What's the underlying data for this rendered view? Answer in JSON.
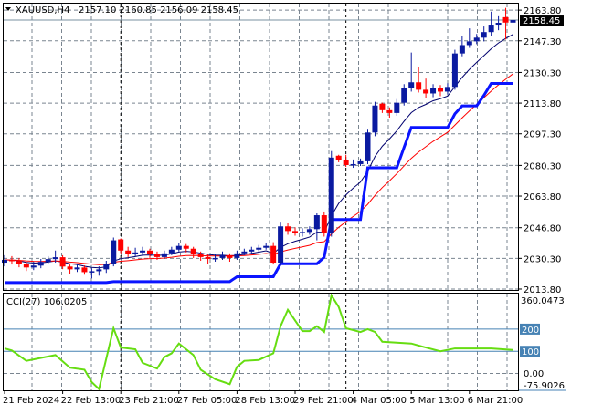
{
  "header": {
    "symbol": "XAUUSD,H4",
    "ohlc": "2157.10 2160.85 2156.09 2158.45"
  },
  "chart_data": [
    {
      "type": "candlestick",
      "ylim": [
        2013.3,
        2167.3
      ],
      "y_ticks": [
        "2163.80",
        "2147.30",
        "2130.30",
        "2113.80",
        "2097.30",
        "2080.30",
        "2063.80",
        "2046.80",
        "2030.30",
        "2013.80"
      ],
      "y_tick_values": [
        2163.8,
        2147.3,
        2130.3,
        2113.8,
        2097.3,
        2080.3,
        2063.8,
        2046.8,
        2030.3,
        2013.8
      ],
      "current_price": "2158.45",
      "current_price_value": 2158.45,
      "x_ticks": [
        "21 Feb 2024",
        "22 Feb 13:00",
        "23 Feb 21:00",
        "27 Feb 05:00",
        "28 Feb 13:00",
        "29 Feb 21:00",
        "4 Mar 05:00",
        "5 Mar 13:00",
        "6 Mar 21:00"
      ],
      "x_tick_index": [
        0,
        8,
        16,
        24,
        32,
        40,
        48,
        56,
        64
      ],
      "separator_index": [
        16,
        47
      ],
      "grid": true,
      "colors": {
        "bull": "#0a1aa0",
        "bear": "#ff0000",
        "fast_line": "#00006e",
        "slow_line": "#ff0000",
        "stop_line": "#0a14ff",
        "price_line": "#7890a0"
      },
      "candles": [
        [
          2028.0,
          2032.0,
          2026.0,
          2029.5
        ],
        [
          2029.5,
          2031.5,
          2027.0,
          2028.9
        ],
        [
          2028.9,
          2030.5,
          2025.5,
          2027.4
        ],
        [
          2027.4,
          2028.5,
          2023.5,
          2025.4
        ],
        [
          2025.4,
          2028.5,
          2024.0,
          2026.4
        ],
        [
          2026.4,
          2030.0,
          2025.0,
          2028.4
        ],
        [
          2028.4,
          2031.5,
          2027.5,
          2029.9
        ],
        [
          2029.9,
          2034.5,
          2028.0,
          2030.9
        ],
        [
          2030.9,
          2032.0,
          2024.5,
          2025.9
        ],
        [
          2025.9,
          2027.0,
          2022.0,
          2024.4
        ],
        [
          2024.4,
          2027.5,
          2023.0,
          2025.4
        ],
        [
          2025.4,
          2026.5,
          2021.5,
          2022.9
        ],
        [
          2022.9,
          2025.0,
          2019.5,
          2023.4
        ],
        [
          2023.4,
          2026.0,
          2021.0,
          2024.4
        ],
        [
          2024.4,
          2029.0,
          2022.5,
          2027.4
        ],
        [
          2027.4,
          2041.5,
          2026.0,
          2040.0
        ],
        [
          2040.5,
          2041.0,
          2033.0,
          2034.5
        ],
        [
          2034.5,
          2036.5,
          2031.0,
          2032.5
        ],
        [
          2032.5,
          2036.0,
          2031.5,
          2033.5
        ],
        [
          2033.5,
          2036.5,
          2032.0,
          2034.5
        ],
        [
          2034.5,
          2035.5,
          2030.5,
          2032.5
        ],
        [
          2032.5,
          2034.0,
          2029.5,
          2031.0
        ],
        [
          2031.0,
          2034.5,
          2030.0,
          2033.0
        ],
        [
          2033.0,
          2036.5,
          2032.0,
          2035.0
        ],
        [
          2035.0,
          2038.5,
          2034.0,
          2037.0
        ],
        [
          2037.0,
          2038.0,
          2033.5,
          2035.5
        ],
        [
          2035.5,
          2036.5,
          2030.5,
          2032.5
        ],
        [
          2032.5,
          2034.0,
          2029.0,
          2031.0
        ],
        [
          2031.0,
          2032.5,
          2027.5,
          2030.0
        ],
        [
          2030.0,
          2032.5,
          2028.5,
          2030.5
        ],
        [
          2030.5,
          2034.0,
          2029.5,
          2032.0
        ],
        [
          2032.0,
          2033.0,
          2028.5,
          2030.5
        ],
        [
          2030.5,
          2034.5,
          2029.5,
          2033.0
        ],
        [
          2033.0,
          2035.5,
          2032.0,
          2034.0
        ],
        [
          2034.0,
          2036.5,
          2033.0,
          2035.0
        ],
        [
          2035.0,
          2037.5,
          2034.0,
          2036.0
        ],
        [
          2036.0,
          2038.5,
          2035.0,
          2037.0
        ],
        [
          2037.0,
          2039.0,
          2027.0,
          2028.0
        ],
        [
          2028.0,
          2050.0,
          2026.5,
          2047.5
        ],
        [
          2047.5,
          2049.5,
          2043.0,
          2045.0
        ],
        [
          2045.0,
          2047.0,
          2042.5,
          2044.0
        ],
        [
          2044.0,
          2046.5,
          2042.0,
          2044.5
        ],
        [
          2044.5,
          2047.5,
          2043.0,
          2046.0
        ],
        [
          2046.0,
          2054.5,
          2040.0,
          2053.5
        ],
        [
          2053.5,
          2055.5,
          2042.0,
          2044.0
        ],
        [
          2044.0,
          2088.0,
          2042.0,
          2084.5
        ],
        [
          2085.5,
          2086.0,
          2082.0,
          2083.0
        ],
        [
          2083.0,
          2086.0,
          2079.5,
          2080.5
        ],
        [
          2080.5,
          2083.5,
          2079.0,
          2081.0
        ],
        [
          2081.0,
          2084.0,
          2080.0,
          2082.5
        ],
        [
          2082.5,
          2099.5,
          2081.0,
          2098.0
        ],
        [
          2098.0,
          2114.5,
          2096.0,
          2112.5
        ],
        [
          2113.5,
          2114.0,
          2108.5,
          2110.0
        ],
        [
          2110.0,
          2111.5,
          2106.0,
          2108.5
        ],
        [
          2108.5,
          2116.0,
          2107.0,
          2114.0
        ],
        [
          2114.0,
          2124.0,
          2112.5,
          2122.0
        ],
        [
          2122.0,
          2141.0,
          2120.0,
          2125.0
        ],
        [
          2125.0,
          2133.0,
          2119.5,
          2121.0
        ],
        [
          2121.0,
          2127.0,
          2116.5,
          2119.0
        ],
        [
          2119.0,
          2124.0,
          2117.0,
          2122.0
        ],
        [
          2122.0,
          2123.5,
          2117.5,
          2120.0
        ],
        [
          2120.0,
          2124.5,
          2118.5,
          2122.5
        ],
        [
          2122.5,
          2142.5,
          2121.0,
          2140.5
        ],
        [
          2140.5,
          2150.0,
          2139.0,
          2145.0
        ],
        [
          2145.0,
          2154.0,
          2143.5,
          2147.0
        ],
        [
          2147.0,
          2151.0,
          2145.5,
          2149.0
        ],
        [
          2149.0,
          2155.0,
          2147.0,
          2152.0
        ],
        [
          2152.0,
          2163.0,
          2150.0,
          2156.0
        ],
        [
          2156.0,
          2161.0,
          2153.0,
          2157.0
        ],
        [
          2160.0,
          2165.0,
          2148.0,
          2157.1
        ],
        [
          2157.1,
          2160.85,
          2156.09,
          2158.45
        ]
      ],
      "stop_line": [
        [
          0,
          2017.3
        ],
        [
          14,
          2017.3
        ],
        [
          15,
          2017.8
        ],
        [
          31,
          2017.8
        ],
        [
          32,
          2020.4
        ],
        [
          37,
          2020.4
        ],
        [
          38,
          2027.4
        ],
        [
          43,
          2027.4
        ],
        [
          44,
          2030.9
        ],
        [
          45,
          2051.2
        ],
        [
          49,
          2051.2
        ],
        [
          50,
          2079.0
        ],
        [
          54,
          2079.0
        ],
        [
          55,
          2090.0
        ],
        [
          56,
          2100.7
        ],
        [
          61,
          2100.7
        ],
        [
          62,
          2108.0
        ],
        [
          63,
          2112.3
        ],
        [
          65,
          2112.3
        ],
        [
          66,
          2118.0
        ],
        [
          67,
          2124.4
        ],
        [
          70,
          2124.4
        ]
      ]
    },
    {
      "type": "line",
      "label": "CCI(27) 106.0205",
      "ylim": [
        -75.9026,
        360.0473
      ],
      "y_ticks": [
        "360.0473",
        "200",
        "100",
        "0.00",
        "-75.9026"
      ],
      "levels": [
        200,
        100
      ],
      "colors": {
        "line": "#66dd11",
        "level": "#4682b4"
      },
      "points": [
        [
          0,
          113
        ],
        [
          1,
          104
        ],
        [
          3,
          57
        ],
        [
          5,
          70
        ],
        [
          7,
          83
        ],
        [
          9,
          26
        ],
        [
          11,
          17
        ],
        [
          12,
          -39
        ],
        [
          13,
          -70
        ],
        [
          15,
          204
        ],
        [
          16,
          117
        ],
        [
          18,
          109
        ],
        [
          19,
          48
        ],
        [
          21,
          22
        ],
        [
          22,
          74
        ],
        [
          23,
          91
        ],
        [
          24,
          135
        ],
        [
          26,
          83
        ],
        [
          27,
          17
        ],
        [
          29,
          -26
        ],
        [
          31,
          -48
        ],
        [
          32,
          30
        ],
        [
          33,
          57
        ],
        [
          35,
          61
        ],
        [
          37,
          91
        ],
        [
          38,
          213
        ],
        [
          39,
          287
        ],
        [
          41,
          191
        ],
        [
          42,
          191
        ],
        [
          43,
          213
        ],
        [
          44,
          187
        ],
        [
          45,
          352
        ],
        [
          46,
          300
        ],
        [
          47,
          204
        ],
        [
          49,
          187
        ],
        [
          50,
          200
        ],
        [
          51,
          187
        ],
        [
          52,
          143
        ],
        [
          54,
          139
        ],
        [
          56,
          135
        ],
        [
          58,
          117
        ],
        [
          60,
          100
        ],
        [
          62,
          113
        ],
        [
          64,
          113
        ],
        [
          67,
          113
        ],
        [
          70,
          106.0205
        ]
      ]
    }
  ]
}
